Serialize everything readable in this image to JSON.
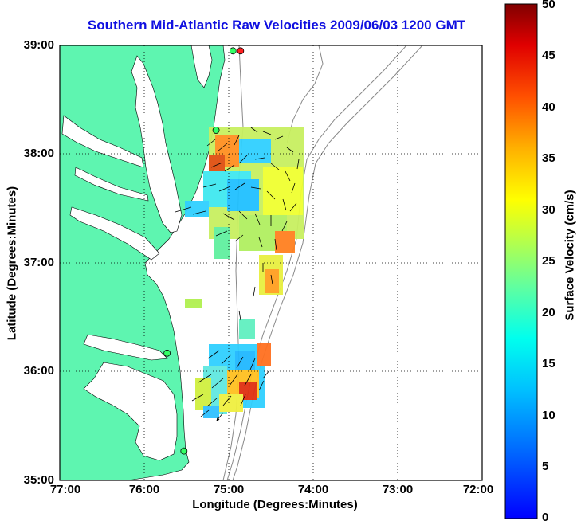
{
  "title": "Southern Mid-Atlantic Raw Velocities 2009/06/03 1200 GMT",
  "map": {
    "xlabel": "Longitude (Degrees:Minutes)",
    "ylabel": "Latitude (Degrees:Minutes)",
    "x_ticks": [
      "77:00",
      "76:00",
      "75:00",
      "74:00",
      "73:00",
      "72:00"
    ],
    "y_ticks": [
      "39:00",
      "38:00",
      "37:00",
      "36:00",
      "35:00"
    ],
    "lon_range": [
      -77,
      -72
    ],
    "lat_range": [
      35,
      39
    ],
    "land_color": "#5ef5b0",
    "grid": "dotted"
  },
  "colorbar": {
    "label": "Surface Velocity (cm/s)",
    "ticks": [
      "50",
      "45",
      "40",
      "35",
      "30",
      "25",
      "20",
      "15",
      "10",
      "5",
      "0"
    ],
    "range": [
      0,
      50
    ],
    "colormap": "jet"
  },
  "stations": [
    {
      "lon": -74.86,
      "lat": 38.95,
      "color": "#ff2020"
    },
    {
      "lon": -74.95,
      "lat": 38.95,
      "color": "#33ff66"
    },
    {
      "lon": -75.15,
      "lat": 38.22,
      "color": "#33ff66"
    },
    {
      "lon": -75.73,
      "lat": 36.17,
      "color": "#33ff66"
    },
    {
      "lon": -75.53,
      "lat": 35.27,
      "color": "#33ff66"
    }
  ]
}
